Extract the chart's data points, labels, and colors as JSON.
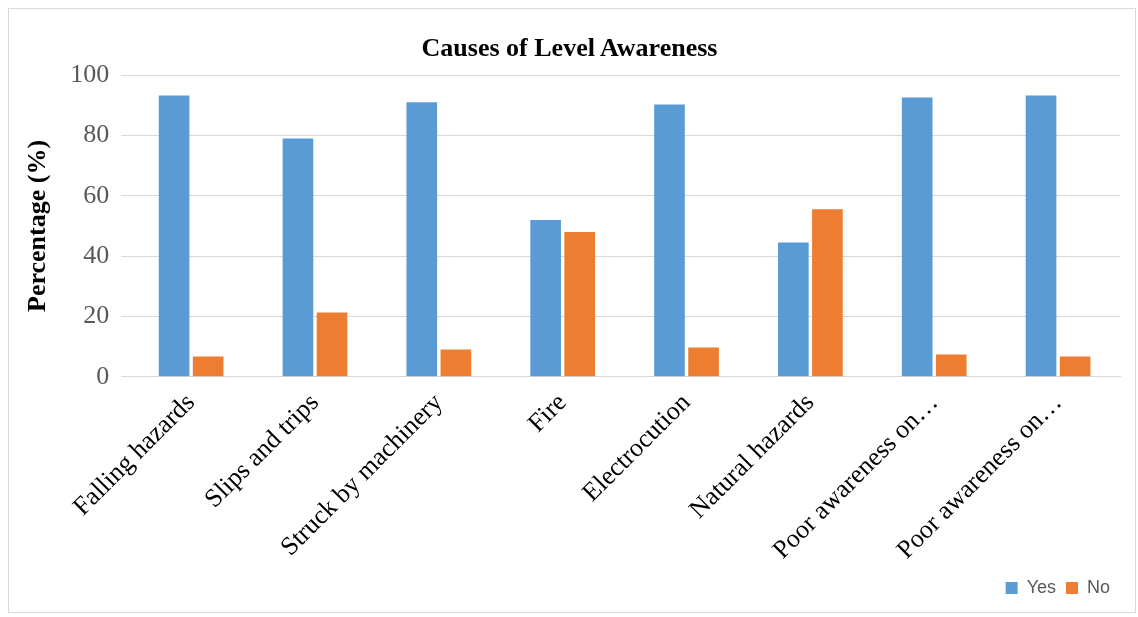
{
  "chart_data": {
    "type": "bar",
    "title": "Causes of Level Awareness",
    "ylabel": "Percentage (%)",
    "categories": [
      "Falling hazards",
      "Slips and trips",
      "Struck by machinery",
      "Fire",
      "Electrocution",
      "Natural hazards",
      "Poor awareness on…",
      "Poor awareness on…"
    ],
    "series": [
      {
        "name": "Yes",
        "color": "#5b9bd5",
        "values": [
          93.3,
          79,
          91,
          52,
          90.3,
          44.5,
          92.6,
          93.3
        ]
      },
      {
        "name": "No",
        "color": "#ed7d31",
        "values": [
          6.7,
          21.3,
          9,
          48,
          9.7,
          55.5,
          7.4,
          6.7
        ]
      }
    ],
    "ylim": [
      0,
      100
    ],
    "yticks": [
      0,
      20,
      40,
      60,
      80,
      100
    ],
    "grid": "y",
    "legend": "bottom right"
  }
}
